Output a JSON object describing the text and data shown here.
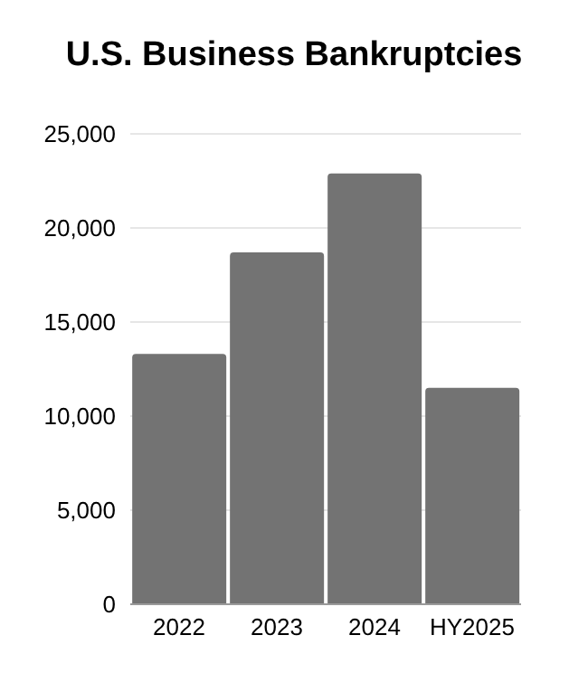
{
  "chart_data": {
    "type": "bar",
    "title": "U.S. Business Bankruptcies",
    "categories": [
      "2022",
      "2023",
      "2024",
      "HY2025"
    ],
    "values": [
      13300,
      18700,
      22900,
      11500
    ],
    "color": "#737373",
    "ylim": [
      0,
      25000
    ],
    "yticks": [
      0,
      {
        "value": 5000,
        "label": "5,000"
      },
      {
        "value": 10000,
        "label": "10,000"
      },
      {
        "value": 15000,
        "label": "15,000"
      },
      {
        "value": 20000,
        "label": "20,000"
      },
      {
        "value": 25000,
        "label": "25,000"
      }
    ],
    "grid": "y"
  }
}
